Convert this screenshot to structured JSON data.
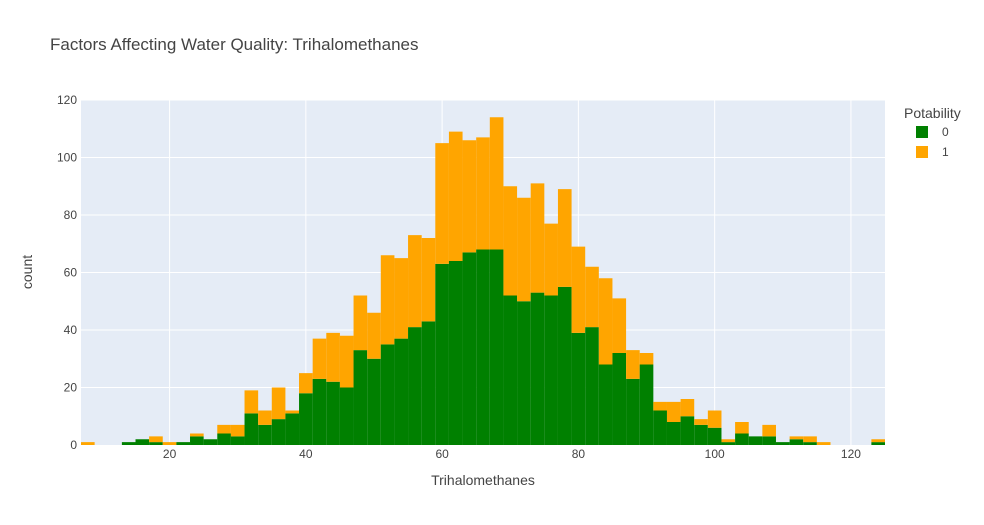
{
  "chart_data": {
    "type": "bar",
    "subtype": "stacked-histogram",
    "title": "Factors Affecting Water Quality: Trihalomethanes",
    "xlabel": "Trihalomethanes",
    "ylabel": "count",
    "xlim": [
      7,
      125
    ],
    "ylim": [
      0,
      120
    ],
    "x_ticks": [
      20,
      40,
      60,
      80,
      100,
      120
    ],
    "y_ticks": [
      0,
      20,
      40,
      60,
      80,
      100,
      120
    ],
    "bin_start": 7,
    "bin_width": 2,
    "grid": true,
    "legend": {
      "title": "Potability",
      "position": "top-right"
    },
    "colors": {
      "plot_bg": "#E5ECF6",
      "grid": "#ffffff"
    },
    "series": [
      {
        "name": "0",
        "color": "#008000",
        "values": [
          0,
          0,
          0,
          1,
          2,
          1,
          0,
          1,
          3,
          2,
          4,
          3,
          11,
          7,
          9,
          11,
          18,
          23,
          22,
          20,
          33,
          30,
          35,
          37,
          41,
          43,
          63,
          64,
          67,
          68,
          68,
          52,
          50,
          53,
          52,
          55,
          39,
          41,
          28,
          32,
          23,
          28,
          12,
          8,
          10,
          7,
          6,
          1,
          4,
          3,
          3,
          1,
          2,
          1,
          0,
          0,
          0,
          0,
          1
        ]
      },
      {
        "name": "1",
        "color": "#FFA500",
        "values": [
          1,
          0,
          0,
          0,
          0,
          2,
          1,
          0,
          1,
          0,
          3,
          4,
          8,
          5,
          11,
          1,
          7,
          14,
          17,
          18,
          19,
          16,
          31,
          28,
          32,
          29,
          42,
          45,
          39,
          39,
          46,
          38,
          36,
          38,
          25,
          34,
          30,
          21,
          30,
          19,
          10,
          4,
          3,
          7,
          6,
          2,
          6,
          1,
          4,
          0,
          4,
          0,
          1,
          2,
          1,
          0,
          0,
          0,
          1
        ]
      }
    ]
  }
}
